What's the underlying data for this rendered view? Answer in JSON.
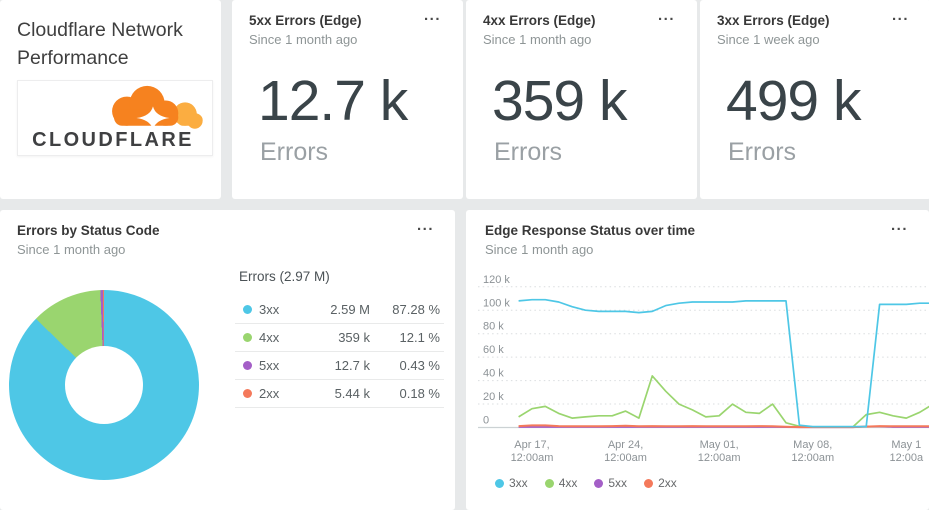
{
  "colors": {
    "cyan": "#4EC7E6",
    "green": "#9AD56F",
    "purple": "#A45FC7",
    "salmon": "#F4795B"
  },
  "header_card": {
    "title": "Cloudflare Network Performance",
    "logo_text": "CLOUDFLARE",
    "logo_cloud_color": "#F6821F",
    "logo_cloud_light": "#FBAD41",
    "logo_text_color": "#3F4042"
  },
  "metric_cards": [
    {
      "title": "5xx Errors (Edge)",
      "subtitle": "Since 1 month ago",
      "value": "12.7 k",
      "label": "Errors",
      "menu": "..."
    },
    {
      "title": "4xx Errors (Edge)",
      "subtitle": "Since 1 month ago",
      "value": "359 k",
      "label": "Errors",
      "menu": "..."
    },
    {
      "title": "3xx Errors (Edge)",
      "subtitle": "Since 1 week ago",
      "value": "499 k",
      "label": "Errors",
      "menu": "..."
    }
  ],
  "pie_card": {
    "title": "Errors by Status Code",
    "subtitle": "Since 1 month ago",
    "menu": "...",
    "table_header": "Errors (2.97 M)"
  },
  "line_card": {
    "title": "Edge Response Status over time",
    "subtitle": "Since 1 month ago",
    "menu": "..."
  },
  "chart_data": [
    {
      "type": "pie",
      "title": "Errors by Status Code",
      "total_label": "Errors (2.97 M)",
      "donut_hole_ratio": 0.41,
      "slices": [
        {
          "label": "3xx",
          "value": "2.59 M",
          "pct": 87.28,
          "pct_text": "87.28 %",
          "color": "#4EC7E6"
        },
        {
          "label": "4xx",
          "value": "359 k",
          "pct": 12.1,
          "pct_text": "12.1 %",
          "color": "#9AD56F"
        },
        {
          "label": "5xx",
          "value": "12.7 k",
          "pct": 0.43,
          "pct_text": "0.43 %",
          "color": "#A45FC7"
        },
        {
          "label": "2xx",
          "value": "5.44 k",
          "pct": 0.18,
          "pct_text": "0.18 %",
          "color": "#F4795B"
        }
      ]
    },
    {
      "type": "line",
      "title": "Edge Response Status over time",
      "unit": "errors (k)",
      "ylim": [
        0,
        120
      ],
      "grid": "dotted",
      "legend_position": "bottom",
      "y_ticks": [
        {
          "v": 120,
          "label": "120 k"
        },
        {
          "v": 100,
          "label": "100 k"
        },
        {
          "v": 80,
          "label": "80 k"
        },
        {
          "v": 60,
          "label": "60 k"
        },
        {
          "v": 40,
          "label": "40 k"
        },
        {
          "v": 20,
          "label": "20 k"
        },
        {
          "v": 0,
          "label": "0"
        }
      ],
      "x_ticks": [
        {
          "day": 1,
          "line1": "Apr 17,",
          "line2": "12:00am"
        },
        {
          "day": 8,
          "line1": "Apr 24,",
          "line2": "12:00am"
        },
        {
          "day": 15,
          "line1": "May 01,",
          "line2": "12:00am"
        },
        {
          "day": 22,
          "line1": "May 08,",
          "line2": "12:00am"
        },
        {
          "day": 29,
          "line1": "May 1",
          "line2": "12:00a"
        }
      ],
      "series": [
        {
          "name": "3xx",
          "color": "#4EC7E6",
          "values_k": [
            108,
            109,
            109,
            107,
            103,
            100,
            99,
            99,
            99,
            98,
            99,
            104,
            106,
            107,
            107,
            107,
            107,
            108,
            108,
            108,
            108,
            2,
            0.8,
            0.8,
            0.8,
            0.8,
            0.8,
            105,
            105,
            105,
            106,
            106
          ]
        },
        {
          "name": "4xx",
          "color": "#9AD56F",
          "values_k": [
            9,
            16,
            18,
            12,
            8,
            9,
            10,
            10,
            14,
            8,
            44,
            31,
            20,
            15,
            9,
            10,
            20,
            13,
            12,
            20,
            4,
            1,
            0.5,
            0.5,
            0.5,
            0.5,
            11,
            13,
            10,
            8,
            13,
            20
          ]
        },
        {
          "name": "5xx",
          "color": "#A45FC7",
          "values_k": [
            0.4,
            0.4,
            0.4,
            0.4,
            0.4,
            0.4,
            0.4,
            0.4,
            0.4,
            0.4,
            0.4,
            0.4,
            0.4,
            0.4,
            0.4,
            0.4,
            0.4,
            0.4,
            0.4,
            0.4,
            0.3,
            0.2,
            0.2,
            0.2,
            0.2,
            0.2,
            0.9,
            0.9,
            0.4,
            0.4,
            0.4,
            0.4
          ]
        },
        {
          "name": "2xx",
          "color": "#F4795B",
          "values_k": [
            1.2,
            1.8,
            1.8,
            1.2,
            1,
            1,
            1,
            1.2,
            1.5,
            1,
            1.2,
            1,
            1,
            1.2,
            1,
            1,
            1,
            1,
            1.2,
            1,
            0.6,
            0.3,
            0.3,
            0.3,
            0.3,
            0.3,
            0.8,
            1.2,
            1,
            1,
            1,
            1
          ]
        }
      ]
    }
  ]
}
